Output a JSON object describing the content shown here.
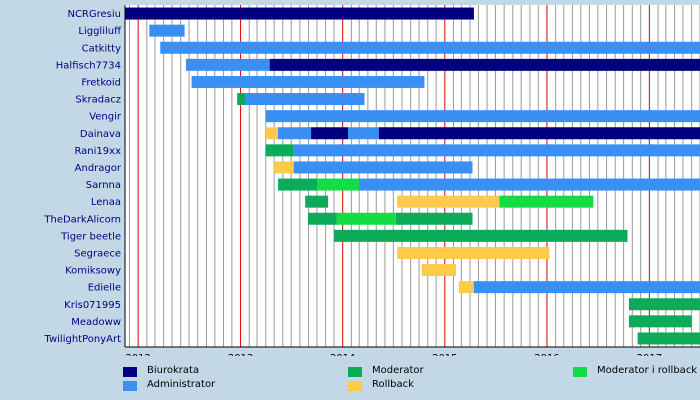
{
  "chart_data": {
    "type": "timeline",
    "x_range": [
      "2011-11-15",
      "2017-07-01"
    ],
    "x_ticks": [
      "2012",
      "2013",
      "2014",
      "2015",
      "2016",
      "2017"
    ],
    "grid": "monthly vertical lines, red lines at year starts",
    "legend_position": "bottom",
    "roles": [
      {
        "key": "biurokrata",
        "label": "Biurokrata",
        "color": "#000080"
      },
      {
        "key": "administrator",
        "label": "Administrator",
        "color": "#3a8ff2"
      },
      {
        "key": "moderator",
        "label": "Moderator",
        "color": "#0bab5a"
      },
      {
        "key": "rollback",
        "label": "Rollback",
        "color": "#ffca48"
      },
      {
        "key": "moderator_rollback",
        "label": "Moderator i rollback",
        "color": "#13dc45"
      }
    ],
    "users": [
      {
        "name": "NCRGresiu",
        "periods": [
          {
            "role": "biurokrata",
            "start": "2011-11-15",
            "end": "2015-04-15"
          }
        ]
      },
      {
        "name": "Liggliluff",
        "periods": [
          {
            "role": "administrator",
            "start": "2012-02-10",
            "end": "2012-06-15"
          }
        ]
      },
      {
        "name": "Catkitty",
        "periods": [
          {
            "role": "administrator",
            "start": "2012-03-20",
            "end": "2017-07-01"
          }
        ]
      },
      {
        "name": "Halfisch7734",
        "periods": [
          {
            "role": "administrator",
            "start": "2012-06-20",
            "end": "2013-04-15"
          },
          {
            "role": "biurokrata",
            "start": "2013-04-15",
            "end": "2017-07-01"
          }
        ]
      },
      {
        "name": "Fretkoid",
        "periods": [
          {
            "role": "administrator",
            "start": "2012-07-10",
            "end": "2014-10-20"
          }
        ]
      },
      {
        "name": "Skradacz",
        "periods": [
          {
            "role": "moderator",
            "start": "2012-12-20",
            "end": "2013-01-20"
          },
          {
            "role": "administrator",
            "start": "2013-01-20",
            "end": "2014-03-20"
          }
        ]
      },
      {
        "name": "Vengir",
        "periods": [
          {
            "role": "administrator",
            "start": "2013-04-01",
            "end": "2017-07-01"
          }
        ]
      },
      {
        "name": "Dainava",
        "periods": [
          {
            "role": "rollback",
            "start": "2013-04-01",
            "end": "2013-05-15"
          },
          {
            "role": "administrator",
            "start": "2013-05-15",
            "end": "2013-09-10"
          },
          {
            "role": "biurokrata",
            "start": "2013-09-10",
            "end": "2014-01-20"
          },
          {
            "role": "administrator",
            "start": "2014-01-20",
            "end": "2014-05-10"
          },
          {
            "role": "biurokrata",
            "start": "2014-05-10",
            "end": "2017-07-01"
          }
        ]
      },
      {
        "name": "Rani19xx",
        "periods": [
          {
            "role": "moderator",
            "start": "2013-04-01",
            "end": "2013-07-10"
          },
          {
            "role": "administrator",
            "start": "2013-07-10",
            "end": "2017-07-01"
          }
        ]
      },
      {
        "name": "Andragor",
        "periods": [
          {
            "role": "rollback",
            "start": "2013-05-01",
            "end": "2013-07-10"
          },
          {
            "role": "administrator",
            "start": "2013-07-10",
            "end": "2015-04-10"
          }
        ]
      },
      {
        "name": "Sarnna",
        "periods": [
          {
            "role": "moderator",
            "start": "2013-05-15",
            "end": "2013-10-01"
          },
          {
            "role": "moderator_rollback",
            "start": "2013-10-01",
            "end": "2014-03-01"
          },
          {
            "role": "administrator",
            "start": "2014-03-01",
            "end": "2017-07-01"
          }
        ]
      },
      {
        "name": "Lenaa",
        "periods": [
          {
            "role": "moderator",
            "start": "2013-08-20",
            "end": "2013-11-10"
          },
          {
            "role": "rollback",
            "start": "2014-07-15",
            "end": "2015-07-15"
          },
          {
            "role": "moderator_rollback",
            "start": "2015-07-15",
            "end": "2016-06-15"
          }
        ]
      },
      {
        "name": "TheDarkAlicorn",
        "periods": [
          {
            "role": "moderator",
            "start": "2013-08-30",
            "end": "2013-12-10"
          },
          {
            "role": "moderator_rollback",
            "start": "2013-12-10",
            "end": "2014-07-10"
          },
          {
            "role": "moderator",
            "start": "2014-07-10",
            "end": "2015-04-10"
          }
        ]
      },
      {
        "name": "Tiger beetle",
        "periods": [
          {
            "role": "moderator",
            "start": "2013-12-01",
            "end": "2016-10-15"
          }
        ]
      },
      {
        "name": "Segraece",
        "periods": [
          {
            "role": "rollback",
            "start": "2014-07-15",
            "end": "2016-01-10"
          }
        ]
      },
      {
        "name": "Komiksowy",
        "periods": [
          {
            "role": "rollback",
            "start": "2014-10-10",
            "end": "2015-02-10"
          }
        ]
      },
      {
        "name": "Edielle",
        "periods": [
          {
            "role": "rollback",
            "start": "2015-02-20",
            "end": "2015-04-15"
          },
          {
            "role": "administrator",
            "start": "2015-04-15",
            "end": "2017-07-01"
          }
        ]
      },
      {
        "name": "Kris071995",
        "periods": [
          {
            "role": "moderator",
            "start": "2016-10-20",
            "end": "2017-07-01"
          }
        ]
      },
      {
        "name": "Meadoww",
        "periods": [
          {
            "role": "moderator",
            "start": "2016-10-20",
            "end": "2017-06-01"
          }
        ]
      },
      {
        "name": "TwilightPonyArt",
        "periods": [
          {
            "role": "moderator",
            "start": "2016-11-20",
            "end": "2017-07-01"
          }
        ]
      }
    ]
  }
}
